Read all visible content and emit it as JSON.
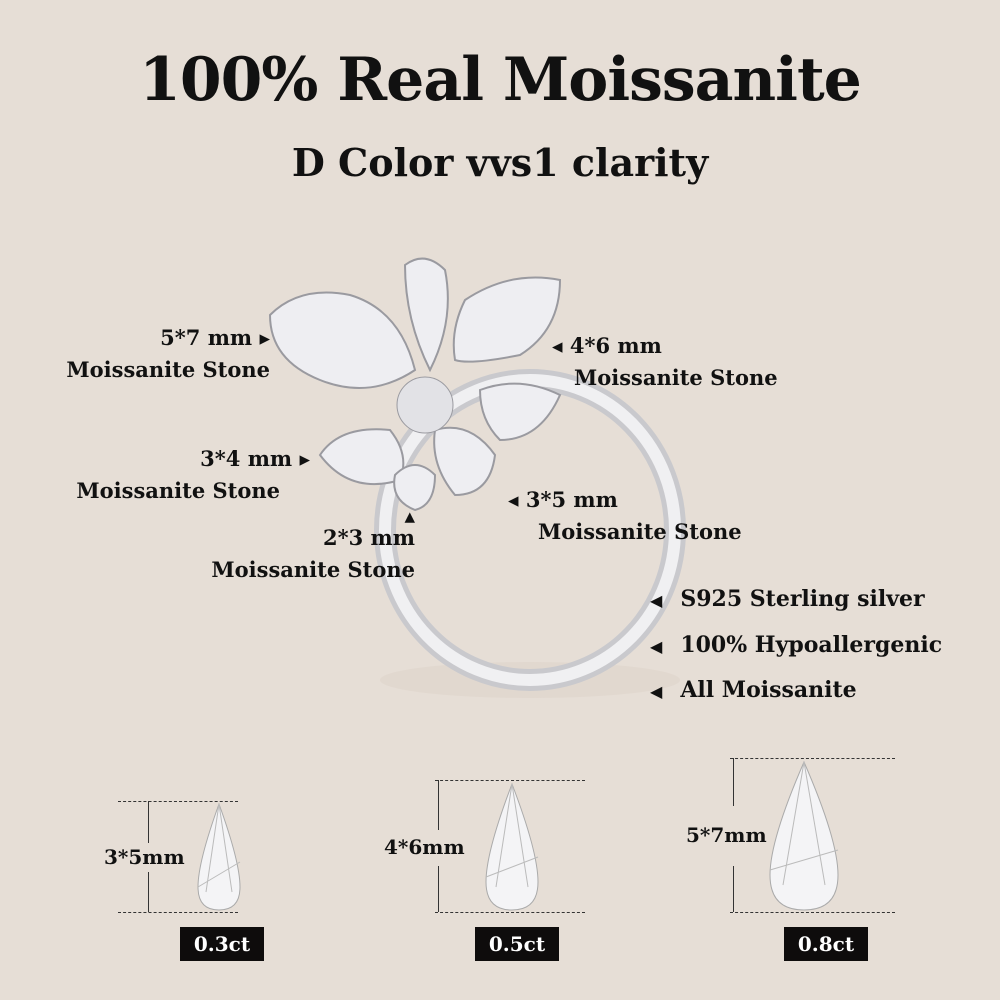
{
  "header": {
    "title": "100% Real Moissanite",
    "subtitle": "D Color vvs1 clarity"
  },
  "callouts": [
    {
      "size": "5*7 mm",
      "label": "Moissanite Stone"
    },
    {
      "size": "4*6 mm",
      "label": "Moissanite Stone"
    },
    {
      "size": "3*4 mm",
      "label": "Moissanite Stone"
    },
    {
      "size": "3*5 mm",
      "label": "Moissanite Stone"
    },
    {
      "size": "2*3 mm",
      "label": "Moissanite Stone"
    }
  ],
  "features": [
    {
      "icon": "left-triangle-icon",
      "text": "S925 Sterling silver"
    },
    {
      "icon": "left-triangle-icon",
      "text": "100% Hypoallergenic"
    },
    {
      "icon": "left-triangle-icon",
      "text": "All Moissanite"
    }
  ],
  "stones": [
    {
      "size": "3*5mm",
      "carat": "0.3ct"
    },
    {
      "size": "4*6mm",
      "carat": "0.5ct"
    },
    {
      "size": "5*7mm",
      "carat": "0.8ct"
    }
  ],
  "colors": {
    "background": "#e6ded6",
    "badge": "#0e0c0c",
    "metal": "#d8d8dc"
  }
}
